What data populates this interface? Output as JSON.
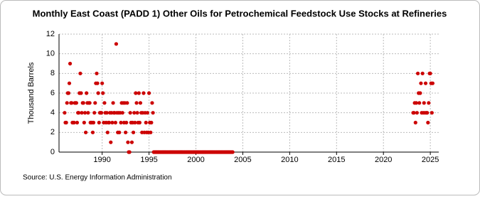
{
  "chart_data": {
    "type": "scatter",
    "title": "Monthly East Coast (PADD 1) Other Oils for Petrochemical Feedstock Use Stocks at Refineries",
    "y_label": "Thousand Barrels",
    "source": "Source: U.S. Energy Information Administration",
    "color": "#cc0000",
    "xlim": [
      1985.4,
      2025.9
    ],
    "xticks": [
      1990,
      1995,
      2000,
      2005,
      2010,
      2015,
      2020,
      2025
    ],
    "ylim": [
      0,
      12
    ],
    "yticks": [
      0,
      2,
      4,
      6,
      8,
      10,
      12
    ],
    "grid": true,
    "x": [
      1986,
      1986.08,
      1986.17,
      1986.25,
      1986.33,
      1986.42,
      1986.5,
      1986.58,
      1986.67,
      1986.75,
      1986.83,
      1986.92,
      1987,
      1987.08,
      1987.17,
      1987.25,
      1987.33,
      1987.42,
      1987.5,
      1987.58,
      1987.67,
      1987.75,
      1987.83,
      1987.92,
      1988,
      1988.08,
      1988.17,
      1988.25,
      1988.33,
      1988.42,
      1988.5,
      1988.58,
      1988.67,
      1988.75,
      1988.83,
      1988.92,
      1989,
      1989.08,
      1989.17,
      1989.25,
      1989.33,
      1989.42,
      1989.5,
      1989.58,
      1989.67,
      1989.75,
      1989.83,
      1989.92,
      1990,
      1990.08,
      1990.17,
      1990.25,
      1990.33,
      1990.42,
      1990.5,
      1990.58,
      1990.67,
      1990.75,
      1990.83,
      1990.92,
      1991,
      1991.08,
      1991.17,
      1991.25,
      1991.33,
      1991.42,
      1991.5,
      1991.58,
      1991.67,
      1991.75,
      1991.83,
      1991.92,
      1992,
      1992.08,
      1992.17,
      1992.25,
      1992.33,
      1992.42,
      1992.5,
      1992.58,
      1992.67,
      1992.75,
      1992.83,
      1992.92,
      1993,
      1993.08,
      1993.17,
      1993.25,
      1993.33,
      1993.42,
      1993.5,
      1993.58,
      1993.67,
      1993.75,
      1993.83,
      1993.92,
      1994,
      1994.08,
      1994.17,
      1994.25,
      1994.33,
      1994.42,
      1994.5,
      1994.58,
      1994.67,
      1994.75,
      1994.83,
      1994.92,
      1995,
      1995.08,
      1995.17,
      1995.25,
      1995.33,
      1995.42,
      1995.5,
      1995.58,
      1995.67,
      1995.75,
      1995.83,
      1995.92,
      1996,
      1996.08,
      1996.17,
      1996.25,
      1996.33,
      1996.42,
      1996.5,
      1996.58,
      1996.67,
      1996.75,
      1996.83,
      1996.92,
      1997,
      1997.08,
      1997.17,
      1997.25,
      1997.33,
      1997.42,
      1997.5,
      1997.58,
      1997.67,
      1997.75,
      1997.83,
      1997.92,
      1998,
      1998.08,
      1998.17,
      1998.25,
      1998.33,
      1998.42,
      1998.5,
      1998.58,
      1998.67,
      1998.75,
      1998.83,
      1998.92,
      1999,
      1999.08,
      1999.17,
      1999.25,
      1999.33,
      1999.42,
      1999.5,
      1999.58,
      1999.67,
      1999.75,
      1999.83,
      1999.92,
      2000,
      2000.08,
      2000.17,
      2000.25,
      2000.33,
      2000.42,
      2000.5,
      2000.58,
      2000.67,
      2000.75,
      2000.83,
      2000.92,
      2001,
      2001.08,
      2001.17,
      2001.25,
      2001.33,
      2001.42,
      2001.5,
      2001.58,
      2001.67,
      2001.75,
      2001.83,
      2001.92,
      2002,
      2002.08,
      2002.17,
      2002.25,
      2002.33,
      2002.42,
      2002.5,
      2002.58,
      2002.67,
      2002.75,
      2002.83,
      2002.92,
      2003,
      2003.08,
      2003.17,
      2003.25,
      2003.33,
      2003.42,
      2003.5,
      2003.58,
      2003.67,
      2003.75,
      2003.83,
      2003.92,
      2023.17,
      2023.25,
      2023.33,
      2023.42,
      2023.5,
      2023.58,
      2023.67,
      2023.75,
      2023.83,
      2023.92,
      2024,
      2024.08,
      2024.17,
      2024.25,
      2024.33,
      2024.42,
      2024.5,
      2024.58,
      2024.67,
      2024.75,
      2024.83,
      2024.92,
      2025,
      2025.08,
      2025.17,
      2025.25
    ],
    "values": [
      4,
      3,
      3,
      5,
      6,
      6,
      7,
      9,
      5,
      5,
      3,
      3,
      3,
      5,
      5,
      5,
      3,
      4,
      4,
      6,
      8,
      6,
      4,
      5,
      5,
      3,
      4,
      2,
      6,
      5,
      4,
      5,
      5,
      3,
      3,
      3,
      2,
      3,
      4,
      5,
      7,
      8,
      7,
      6,
      3,
      4,
      4,
      4,
      7,
      6,
      3,
      5,
      4,
      3,
      4,
      2,
      3,
      3,
      4,
      1,
      4,
      3,
      5,
      4,
      4,
      3,
      11,
      4,
      2,
      4,
      2,
      4,
      3,
      5,
      4,
      5,
      3,
      5,
      2,
      3,
      5,
      1,
      0,
      0,
      4,
      3,
      1,
      3,
      2,
      4,
      3,
      6,
      5,
      4,
      3,
      6,
      3,
      5,
      4,
      2,
      4,
      6,
      2,
      4,
      3,
      2,
      4,
      2,
      6,
      3,
      2,
      3,
      5,
      4,
      0,
      0,
      0,
      0,
      0,
      0,
      0,
      0,
      0,
      0,
      0,
      0,
      0,
      0,
      0,
      0,
      0,
      0,
      0,
      0,
      0,
      0,
      0,
      0,
      0,
      0,
      0,
      0,
      0,
      0,
      0,
      0,
      0,
      0,
      0,
      0,
      0,
      0,
      0,
      0,
      0,
      0,
      0,
      0,
      0,
      0,
      0,
      0,
      0,
      0,
      0,
      0,
      0,
      0,
      0,
      0,
      0,
      0,
      0,
      0,
      0,
      0,
      0,
      0,
      0,
      0,
      0,
      0,
      0,
      0,
      0,
      0,
      0,
      0,
      0,
      0,
      0,
      0,
      0,
      0,
      0,
      0,
      0,
      0,
      0,
      0,
      0,
      0,
      0,
      0,
      0,
      0,
      0,
      0,
      0,
      0,
      0,
      0,
      0,
      0,
      0,
      0,
      4,
      4,
      5,
      3,
      5,
      4,
      8,
      6,
      5,
      6,
      7,
      4,
      8,
      4,
      5,
      4,
      7,
      4,
      4,
      3,
      5,
      8,
      8,
      7,
      4,
      7
    ]
  }
}
